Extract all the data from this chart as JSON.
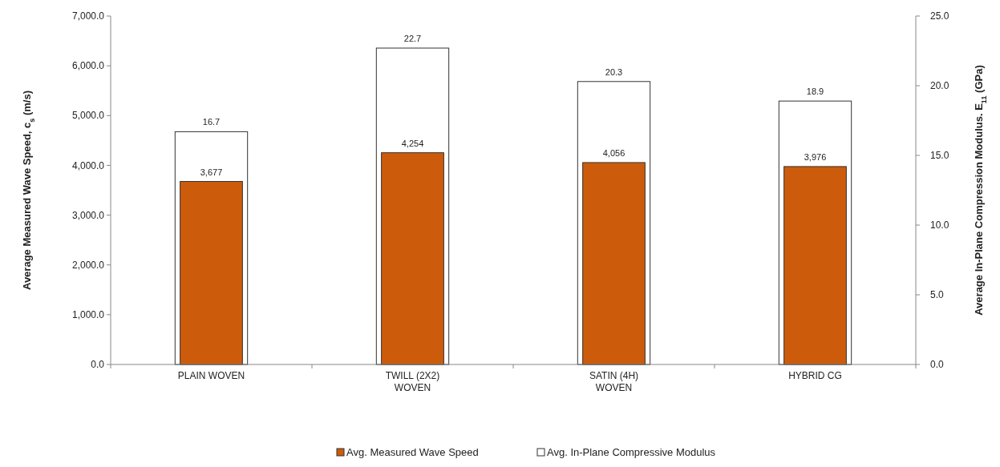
{
  "chart_data": {
    "type": "bar",
    "categories": [
      "PLAIN WOVEN",
      "TWILL (2X2)\nWOVEN",
      "SATIN (4H)\nWOVEN",
      "HYBRID CG"
    ],
    "ylabel": "Average Measured Wave Speed, c$_{s}$  (m/s)",
    "y2label": "Average In-Plane Compression Modulus. E$_{11}$  (GPa)",
    "series": [
      {
        "name": "Avg. In-Plane Compressive Modulus",
        "color": "#ffffff",
        "axis": "y2",
        "values": [
          16.7,
          22.7,
          20.3,
          18.9
        ],
        "value_labels": [
          "16.7",
          "22.7",
          "20.3",
          "18.9"
        ]
      },
      {
        "name": "Avg. Measured Wave Speed",
        "color": "#cc5c0c",
        "axis": "y",
        "values": [
          3677,
          4254,
          4056,
          3976
        ],
        "value_labels": [
          "3,677",
          "4,254",
          "4,056",
          "3,976"
        ]
      }
    ],
    "ylim": [
      0,
      7000
    ],
    "yticks": [
      {
        "value": 0,
        "label": "0.0"
      },
      {
        "value": 1000,
        "label": "1,000.0"
      },
      {
        "value": 2000,
        "label": "2,000.0"
      },
      {
        "value": 3000,
        "label": "3,000.0"
      },
      {
        "value": 4000,
        "label": "4,000.0"
      },
      {
        "value": 5000,
        "label": "5,000.0"
      },
      {
        "value": 6000,
        "label": "6,000.0"
      },
      {
        "value": 7000,
        "label": "7,000.0"
      }
    ],
    "y2lim": [
      0,
      25
    ],
    "y2ticks": [
      {
        "value": 0,
        "label": "0.0"
      },
      {
        "value": 5,
        "label": "5.0"
      },
      {
        "value": 10,
        "label": "10.0"
      },
      {
        "value": 15,
        "label": "15.0"
      },
      {
        "value": 20,
        "label": "20.0"
      },
      {
        "value": 25,
        "label": "25.0"
      }
    ],
    "legend": "bottom",
    "grid": false
  }
}
